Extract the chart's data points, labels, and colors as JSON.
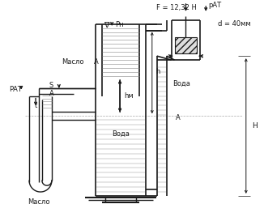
{
  "bg_color": "#ffffff",
  "line_color": "#1a1a1a",
  "gray_color": "#888888",
  "fill_color": "#cccccc",
  "font_size": 6.0,
  "lw_main": 1.0,
  "lw_thin": 0.5,
  "labels": {
    "F": "F = 12,32 H",
    "p_at_top": "pАТ",
    "d": "d = 40мм",
    "maslo_left": "Масло",
    "A_top_left": "A",
    "nabla": "∇",
    "P_n": "Pн",
    "h_m": "hм",
    "h": "h",
    "H": "H",
    "voda_right_pipe": "Вода",
    "voda_tank": "Вода",
    "S": "S",
    "P_AT_left": "PАТ",
    "A_left": "A",
    "t": "t",
    "maslo_bottom": "Масло",
    "A_bottom_right": "A"
  }
}
